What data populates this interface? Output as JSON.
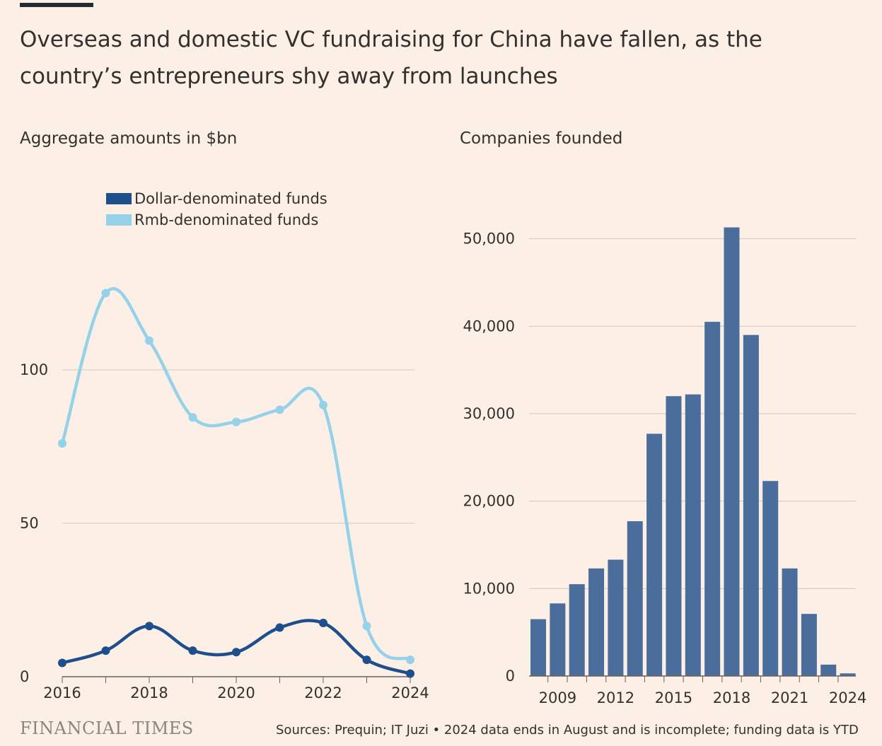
{
  "header": {
    "headline": "Overseas and domestic VC fundraising for China have fallen, as the country’s entrepreneurs shy away from launches"
  },
  "footer": {
    "brand": "FINANCIAL TIMES",
    "source": "Sources: Prequin; IT Juzi • 2024 data ends in August and is incomplete; funding data is YTD"
  },
  "colors": {
    "dollar": "#1f4e8c",
    "rmb": "#96d1ea",
    "bars": "#4a6d9c",
    "grid": "#cfc8c2",
    "axis": "#66605c",
    "background": "#fcf0e6"
  },
  "chart_data": [
    {
      "type": "line",
      "title": "Aggregate amounts in $bn",
      "x": [
        2016,
        2017,
        2018,
        2019,
        2020,
        2021,
        2022,
        2023,
        2024
      ],
      "x_tick_labels": [
        "2016",
        "2018",
        "2020",
        "2022",
        "2024"
      ],
      "y_tick_labels": [
        "0",
        "50",
        "100"
      ],
      "ylim": [
        0,
        130
      ],
      "grid": true,
      "legend_position": "top-left",
      "series": [
        {
          "name": "Dollar-denominated funds",
          "values": [
            4.5,
            8.5,
            16.5,
            8.5,
            8,
            16,
            17.5,
            5.5,
            1
          ]
        },
        {
          "name": "Rmb-denominated funds",
          "values": [
            76,
            125,
            109.5,
            84.5,
            83,
            87,
            88.5,
            16.5,
            5.5
          ]
        }
      ]
    },
    {
      "type": "bar",
      "title": "Companies founded",
      "categories": [
        "2008",
        "2009",
        "2010",
        "2011",
        "2012",
        "2013",
        "2014",
        "2015",
        "2016",
        "2017",
        "2018",
        "2019",
        "2020",
        "2021",
        "2022",
        "2023",
        "2024"
      ],
      "x_tick_labels": [
        "2009",
        "2012",
        "2015",
        "2018",
        "2021",
        "2024"
      ],
      "values": [
        6500,
        8300,
        10500,
        12300,
        13300,
        17700,
        27700,
        32000,
        32200,
        40500,
        51300,
        39000,
        22300,
        12300,
        7100,
        1300,
        300
      ],
      "y_tick_labels": [
        "0",
        "10,000",
        "20,000",
        "30,000",
        "40,000",
        "50,000"
      ],
      "ylim": [
        0,
        52000
      ],
      "grid": true
    }
  ]
}
